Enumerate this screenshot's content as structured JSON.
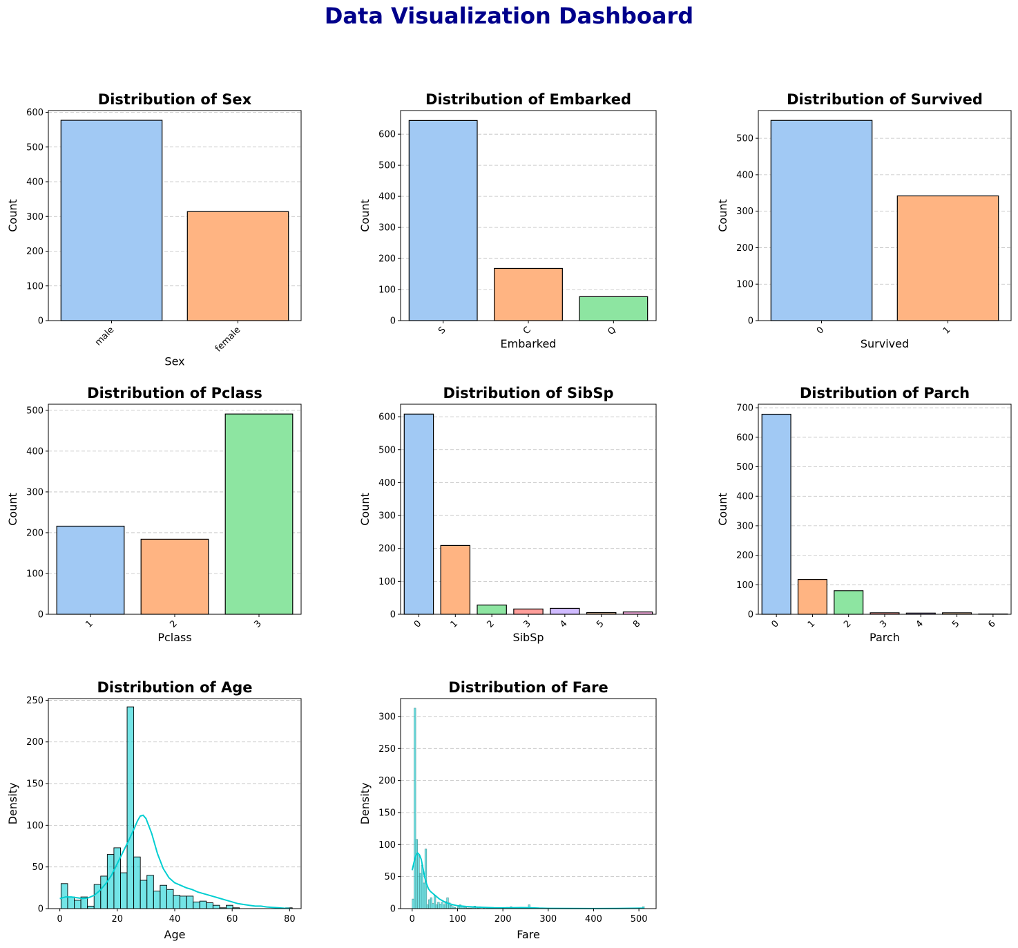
{
  "suptitle": "Data Visualization Dashboard",
  "colors": {
    "title": "#00008b",
    "palette": [
      "#a1c9f4",
      "#ffb482",
      "#8de5a1",
      "#ff9f9b",
      "#d0bbff",
      "#debb9b",
      "#fab0e4"
    ],
    "hist": "#00ced1",
    "grid": "#b0b0b0"
  },
  "chart_data": [
    {
      "id": "sex",
      "type": "bar",
      "title": "Distribution of Sex",
      "xlabel": "Sex",
      "ylabel": "Count",
      "categories": [
        "male",
        "female"
      ],
      "values": [
        577,
        314
      ],
      "ylim": [
        0,
        605
      ],
      "yticks": [
        0,
        100,
        200,
        300,
        400,
        500,
        600
      ],
      "grid": "y"
    },
    {
      "id": "embarked",
      "type": "bar",
      "title": "Distribution of Embarked",
      "xlabel": "Embarked",
      "ylabel": "Count",
      "categories": [
        "S",
        "C",
        "Q"
      ],
      "values": [
        644,
        168,
        77
      ],
      "ylim": [
        0,
        676
      ],
      "yticks": [
        0,
        100,
        200,
        300,
        400,
        500,
        600
      ],
      "grid": "y"
    },
    {
      "id": "survived",
      "type": "bar",
      "title": "Distribution of Survived",
      "xlabel": "Survived",
      "ylabel": "Count",
      "categories": [
        "0",
        "1"
      ],
      "values": [
        549,
        342
      ],
      "ylim": [
        0,
        576
      ],
      "yticks": [
        0,
        100,
        200,
        300,
        400,
        500
      ],
      "grid": "y"
    },
    {
      "id": "pclass",
      "type": "bar",
      "title": "Distribution of Pclass",
      "xlabel": "Pclass",
      "ylabel": "Count",
      "categories": [
        "1",
        "2",
        "3"
      ],
      "values": [
        216,
        184,
        491
      ],
      "ylim": [
        0,
        515
      ],
      "yticks": [
        0,
        100,
        200,
        300,
        400,
        500
      ],
      "grid": "y"
    },
    {
      "id": "sibsp",
      "type": "bar",
      "title": "Distribution of SibSp",
      "xlabel": "SibSp",
      "ylabel": "Count",
      "categories": [
        "0",
        "1",
        "2",
        "3",
        "4",
        "5",
        "8"
      ],
      "values": [
        608,
        209,
        28,
        16,
        18,
        5,
        7
      ],
      "ylim": [
        0,
        638
      ],
      "yticks": [
        0,
        100,
        200,
        300,
        400,
        500,
        600
      ],
      "grid": "y"
    },
    {
      "id": "parch",
      "type": "bar",
      "title": "Distribution of Parch",
      "xlabel": "Parch",
      "ylabel": "Count",
      "categories": [
        "0",
        "1",
        "2",
        "3",
        "4",
        "5",
        "6"
      ],
      "values": [
        678,
        118,
        80,
        5,
        4,
        5,
        1
      ],
      "ylim": [
        0,
        712
      ],
      "yticks": [
        0,
        100,
        200,
        300,
        400,
        500,
        600,
        700
      ],
      "grid": "y"
    },
    {
      "id": "age",
      "type": "histogram",
      "title": "Distribution of Age",
      "xlabel": "Age",
      "ylabel": "Density",
      "bin_start": 0.42,
      "bin_width": 2.3,
      "counts": [
        30,
        14,
        10,
        14,
        3,
        29,
        39,
        65,
        73,
        43,
        242,
        62,
        34,
        40,
        21,
        28,
        23,
        16,
        15,
        15,
        8,
        9,
        7,
        4,
        1,
        4,
        1,
        0,
        0,
        0,
        0,
        0,
        0,
        0,
        1
      ],
      "kde_x": [
        0,
        2,
        4,
        6,
        8,
        10,
        12,
        14,
        16,
        18,
        20,
        22,
        24,
        26,
        27,
        28,
        29,
        30,
        32,
        34,
        36,
        38,
        40,
        42,
        44,
        46,
        48,
        50,
        52,
        54,
        56,
        58,
        60,
        62,
        64,
        66,
        68,
        70,
        72,
        74,
        76,
        78,
        80
      ],
      "kde_y": [
        12,
        14,
        14,
        13,
        12,
        13,
        16,
        22,
        30,
        40,
        54,
        68,
        82,
        97,
        105,
        111,
        112,
        108,
        90,
        66,
        48,
        37,
        31,
        28,
        25,
        23,
        20,
        18,
        16,
        14,
        12,
        10,
        8,
        6,
        5,
        4,
        3,
        3,
        2,
        1.5,
        1,
        0.5,
        0.3
      ],
      "xlim": [
        -4,
        84
      ],
      "ylim": [
        0,
        252
      ],
      "xticks": [
        0,
        20,
        40,
        60,
        80
      ],
      "yticks": [
        0,
        50,
        100,
        150,
        200,
        250
      ],
      "grid": "y"
    },
    {
      "id": "fare",
      "type": "histogram",
      "title": "Distribution of Fare",
      "xlabel": "Fare",
      "ylabel": "Density",
      "bin_start": 0,
      "bin_width": 4,
      "counts": [
        15,
        313,
        108,
        83,
        55,
        68,
        40,
        93,
        6,
        14,
        17,
        8,
        21,
        6,
        10,
        7,
        10,
        6,
        11,
        17,
        9,
        5,
        3,
        2,
        0,
        3,
        6,
        4,
        3,
        2,
        1,
        1,
        1,
        3,
        4,
        2,
        1,
        3,
        0,
        1,
        0,
        1,
        0,
        0,
        0,
        0,
        0,
        0,
        0,
        0,
        0,
        0,
        2,
        0,
        3,
        0,
        1,
        0,
        0,
        0,
        0,
        0,
        0,
        0,
        6,
        0,
        0,
        0,
        0,
        0,
        0,
        0,
        0,
        0,
        0,
        0,
        0,
        0,
        0,
        0,
        0,
        0,
        0,
        0,
        0,
        0,
        0,
        0,
        0,
        0,
        0,
        0,
        0,
        0,
        0,
        0,
        0,
        0,
        0,
        0,
        0,
        0,
        0,
        0,
        0,
        0,
        0,
        0,
        0,
        0,
        0,
        0,
        0,
        0,
        0,
        0,
        0,
        0,
        0,
        0,
        0,
        0,
        0,
        0,
        0,
        0,
        0,
        3
      ],
      "kde_x": [
        0,
        4,
        8,
        12,
        16,
        20,
        24,
        28,
        32,
        36,
        40,
        50,
        60,
        70,
        80,
        90,
        100,
        120,
        140,
        160,
        180,
        200,
        220,
        240,
        260,
        280,
        300,
        350,
        400,
        450,
        500,
        512
      ],
      "kde_y": [
        60,
        72,
        83,
        87,
        84,
        77,
        62,
        48,
        38,
        31,
        27,
        21,
        15,
        11,
        8,
        6,
        4.5,
        3.2,
        2.5,
        1.8,
        1.3,
        1.2,
        1.4,
        1.6,
        1.4,
        0.8,
        0.4,
        0.2,
        0.1,
        0.2,
        0.6,
        0.8
      ],
      "xlim": [
        -25.6,
        537.9
      ],
      "ylim": [
        0,
        328
      ],
      "xticks": [
        0,
        100,
        200,
        300,
        400,
        500
      ],
      "yticks": [
        0,
        50,
        100,
        150,
        200,
        250,
        300
      ],
      "grid": "y"
    }
  ]
}
